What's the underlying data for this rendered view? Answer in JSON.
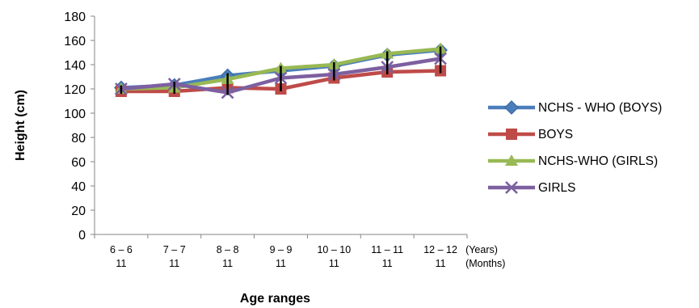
{
  "chart_data": {
    "type": "line",
    "xlabel": "Age ranges",
    "ylabel": "Height (cm)",
    "ylim": [
      0,
      180
    ],
    "yticks": [
      0,
      20,
      40,
      60,
      80,
      100,
      120,
      140,
      160,
      180
    ],
    "categories": [
      [
        "6 – 6",
        "11"
      ],
      [
        "7 – 7",
        "11"
      ],
      [
        "8 – 8",
        "11"
      ],
      [
        "9 – 9",
        "11"
      ],
      [
        "10 – 10",
        "11"
      ],
      [
        "11 – 11",
        "11"
      ],
      [
        "12 – 12",
        "11"
      ]
    ],
    "x_unit_labels": [
      "(Years)",
      "(Months)"
    ],
    "grid": false,
    "legend_position": "right",
    "series": [
      {
        "name": "NCHS - WHO (BOYS)",
        "color": "#4a7ebb",
        "marker": "diamond",
        "values": [
          121,
          123,
          131,
          135,
          139,
          148,
          152
        ]
      },
      {
        "name": "BOYS",
        "color": "#be4b48",
        "marker": "square",
        "values": [
          118,
          118,
          121,
          120,
          129,
          134,
          135
        ]
      },
      {
        "name": "NCHS-WHO (GIRLS)",
        "color": "#98b954",
        "marker": "triangle",
        "values": [
          120,
          121,
          128,
          137,
          140,
          149,
          153
        ]
      },
      {
        "name": "GIRLS",
        "color": "#7d60a0",
        "marker": "x",
        "values": [
          120,
          124,
          117,
          129,
          132,
          138,
          145
        ]
      }
    ]
  }
}
